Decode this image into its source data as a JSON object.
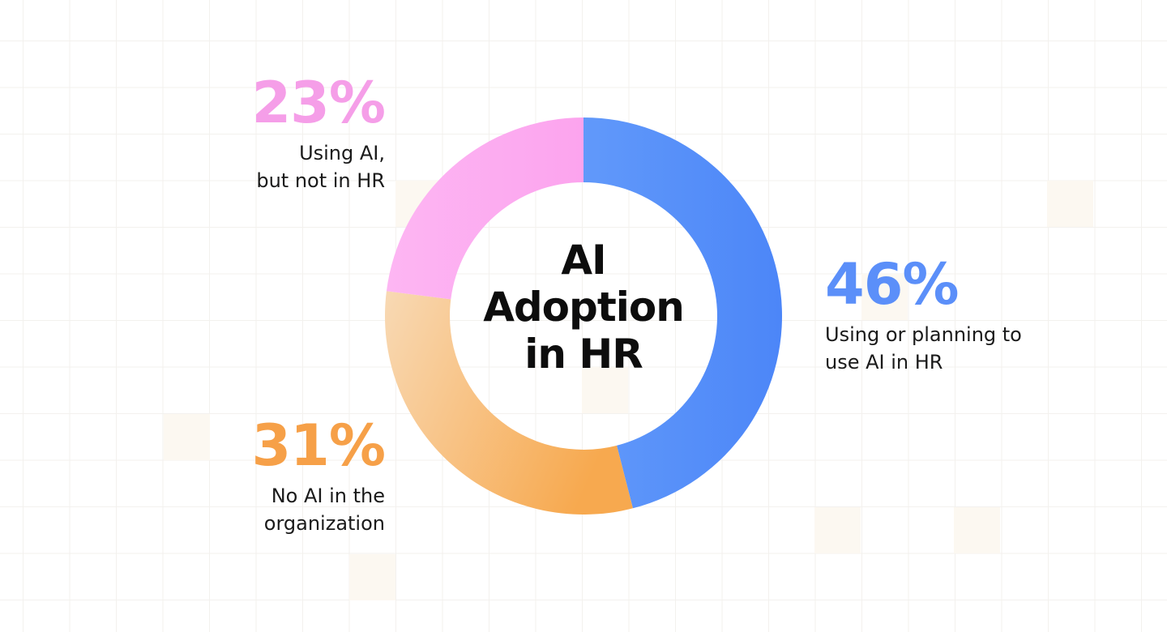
{
  "chart_data": {
    "type": "pie",
    "title": "AI Adoption in HR",
    "title_lines": [
      "AI",
      "Adoption",
      "in HR"
    ],
    "donut": true,
    "slices": [
      {
        "label_lines": [
          "Using or planning to",
          "use AI in HR"
        ],
        "value": 46,
        "value_label": "46%",
        "color": "#5b8ff9"
      },
      {
        "label_lines": [
          "No AI in the",
          "organization"
        ],
        "value": 31,
        "value_label": "31%",
        "color": "#f6a048"
      },
      {
        "label_lines": [
          "Using AI,",
          "but not in HR"
        ],
        "value": 23,
        "value_label": "23%",
        "color": "#fcaaf0"
      }
    ]
  }
}
